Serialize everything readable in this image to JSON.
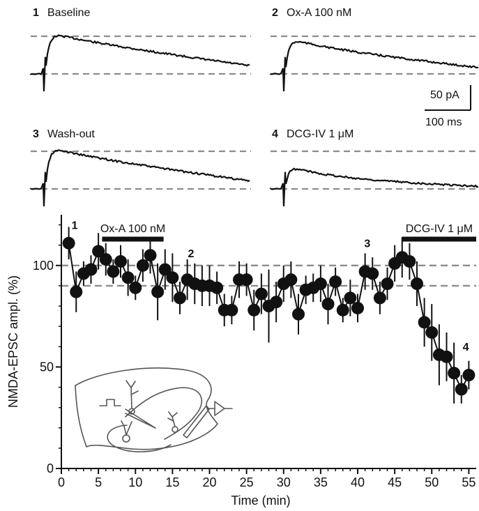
{
  "traces": [
    {
      "number": "1",
      "label": "Baseline",
      "peak": 1.11,
      "decay_end": 0.88
    },
    {
      "number": "2",
      "label": "Ox-A 100 nM",
      "peak": 0.95,
      "decay_end": 0.8
    },
    {
      "number": "3",
      "label": "Wash-out",
      "peak": 1.12,
      "decay_end": 0.86
    },
    {
      "number": "4",
      "label": "DCG-IV 1 μM",
      "peak": 0.62,
      "decay_end": 0.48
    }
  ],
  "scale_bar": {
    "amplitude_label": "50 pA",
    "time_label": "100 ms"
  },
  "chart_data": {
    "type": "scatter",
    "xlabel": "Time (min)",
    "ylabel": "NMDA-EPSC ampl. (%)",
    "xlim": [
      0,
      56
    ],
    "ylim": [
      0,
      125
    ],
    "xticks": [
      "0",
      "5",
      "10",
      "15",
      "20",
      "25",
      "30",
      "35",
      "40",
      "45",
      "50",
      "55"
    ],
    "yticks": [
      "0",
      "50",
      "100"
    ],
    "reference_lines": [
      100,
      90
    ],
    "treatments": [
      {
        "label": "Ox-A 100 nM",
        "start": 5.5,
        "end": 13.8
      },
      {
        "label": "DCG-IV 1 μM",
        "start": 46.0,
        "end": 56.0
      }
    ],
    "time_markers": [
      {
        "label": "1",
        "x": 1.8,
        "y": 118
      },
      {
        "label": "2",
        "x": 17.5,
        "y": 104
      },
      {
        "label": "3",
        "x": 41.3,
        "y": 109
      },
      {
        "label": "4",
        "x": 54.6,
        "y": 58
      }
    ],
    "series": [
      {
        "x": [
          1,
          2,
          3,
          4,
          5,
          6,
          7,
          8,
          9,
          10,
          11,
          12,
          13,
          14,
          15,
          16,
          17,
          18,
          19,
          20,
          21,
          22,
          23,
          24,
          25,
          26,
          27,
          28,
          29,
          30,
          31,
          32,
          33,
          34,
          35,
          36,
          37,
          38,
          39,
          40,
          41,
          42,
          43,
          44,
          45,
          46,
          47,
          48,
          49,
          50,
          51,
          52,
          53,
          54,
          55
        ],
        "values": [
          111,
          87,
          96,
          98,
          107,
          103,
          97,
          102,
          94,
          89,
          100,
          105,
          87,
          98,
          94,
          84,
          93,
          91,
          90,
          90,
          89,
          78,
          78,
          93,
          93,
          78,
          86,
          80,
          82,
          91,
          93,
          76,
          88,
          89,
          91,
          81,
          92,
          78,
          84,
          79,
          97,
          96,
          84,
          91,
          101,
          104,
          102,
          91,
          72,
          67,
          56,
          55,
          47,
          39,
          46
        ],
        "errors": [
          8,
          10,
          6,
          7,
          9,
          8,
          6,
          8,
          9,
          6,
          8,
          9,
          14,
          10,
          12,
          8,
          10,
          10,
          10,
          10,
          8,
          8,
          7,
          9,
          8,
          10,
          10,
          18,
          10,
          9,
          9,
          10,
          7,
          7,
          9,
          10,
          7,
          6,
          9,
          7,
          9,
          8,
          8,
          8,
          9,
          10,
          9,
          11,
          12,
          14,
          15,
          12,
          15,
          7,
          7
        ]
      }
    ]
  },
  "colors": {
    "ink": "#111111",
    "dashed_reference": "#8c8c8c",
    "diagram": "#555555"
  }
}
